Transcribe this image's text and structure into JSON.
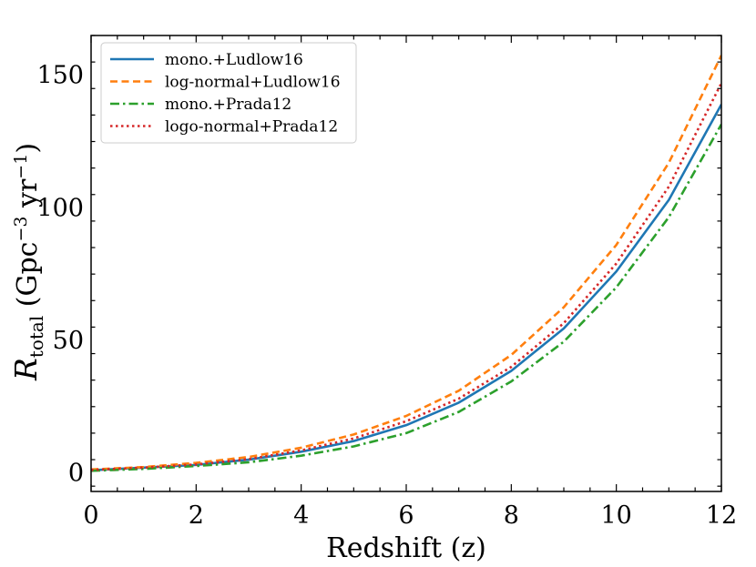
{
  "chart_data": {
    "type": "line",
    "title": "",
    "xlabel": "Redshift (z)",
    "ylabel": {
      "symbol": "R",
      "subscript": "total",
      "units_prefix": " (Gpc",
      "units_exp1": "−3",
      "units_mid": " yr",
      "units_exp2": "−1",
      "units_suffix": ")"
    },
    "xlim": [
      0,
      12
    ],
    "ylim": [
      -7,
      165
    ],
    "xticks": [
      0,
      2,
      4,
      6,
      8,
      10,
      12
    ],
    "yticks": [
      0,
      50,
      100,
      150
    ],
    "grid": false,
    "legend_position": "top-left",
    "x": [
      0,
      1,
      2,
      3,
      4,
      5,
      6,
      7,
      8,
      9,
      10,
      11,
      12
    ],
    "series": [
      {
        "name": "mono.+Ludlow16",
        "color": "#1f77b4",
        "dash": "solid",
        "values": [
          1.0,
          2.0,
          3.0,
          5.0,
          8.0,
          12.0,
          18.0,
          26.5,
          38.5,
          54.5,
          76.0,
          103.0,
          139.0
        ]
      },
      {
        "name": "log-normal+Ludlow16",
        "color": "#ff7f0e",
        "dash": "dashed",
        "values": [
          1.3,
          2.2,
          3.8,
          6.0,
          9.5,
          14.5,
          21.5,
          31.0,
          44.5,
          62.5,
          86.0,
          117.0,
          157.5
        ]
      },
      {
        "name": "mono.+Prada12",
        "color": "#2ca02c",
        "dash": "dashdot",
        "values": [
          0.8,
          1.5,
          2.6,
          4.0,
          6.5,
          10.0,
          15.0,
          23.0,
          34.5,
          49.5,
          70.0,
          96.5,
          131.5
        ]
      },
      {
        "name": "logo-normal+Prada12",
        "color": "#d62728",
        "dash": "dotted",
        "values": [
          1.1,
          2.0,
          3.2,
          5.2,
          8.5,
          13.0,
          19.5,
          28.0,
          40.0,
          56.5,
          79.0,
          108.0,
          147.0
        ]
      }
    ]
  }
}
